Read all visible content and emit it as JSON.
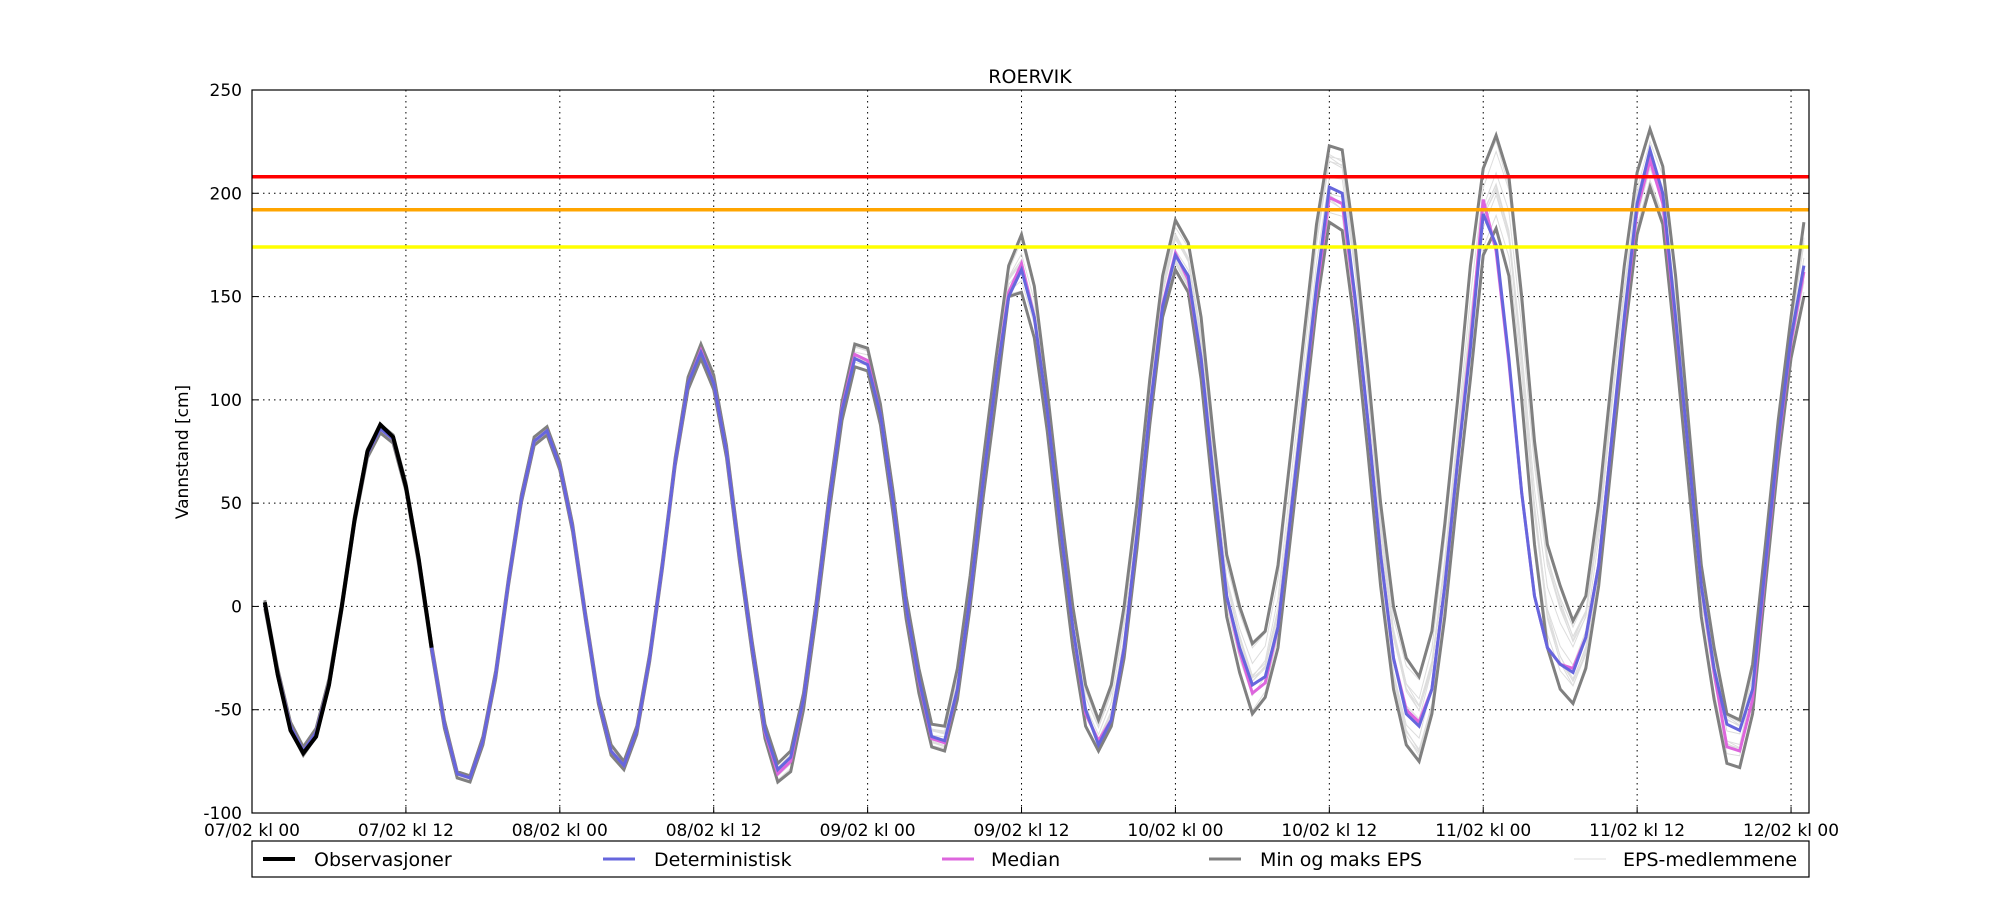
{
  "chart_data": {
    "type": "line",
    "title": "ROERVIK",
    "xlabel": "",
    "ylabel": "Vannstand [cm]",
    "ylim": [
      -100,
      250
    ],
    "yticks": [
      -100,
      -50,
      0,
      50,
      100,
      150,
      200,
      250
    ],
    "xlim_hours_from_start": [
      0,
      121.4
    ],
    "xticks": [
      {
        "hour": 0,
        "label": "07/02 kl 00"
      },
      {
        "hour": 12,
        "label": "07/02 kl 12"
      },
      {
        "hour": 24,
        "label": "08/02 kl 00"
      },
      {
        "hour": 36,
        "label": "08/02 kl 12"
      },
      {
        "hour": 48,
        "label": "09/02 kl 00"
      },
      {
        "hour": 60,
        "label": "09/02 kl 12"
      },
      {
        "hour": 72,
        "label": "10/02 kl 00"
      },
      {
        "hour": 84,
        "label": "10/02 kl 12"
      },
      {
        "hour": 96,
        "label": "11/02 kl 00"
      },
      {
        "hour": 108,
        "label": "11/02 kl 12"
      },
      {
        "hour": 120,
        "label": "12/02 kl 00"
      }
    ],
    "grid": true,
    "legend_position": "below",
    "thresholds": [
      {
        "value": 208,
        "color": "#ff0000"
      },
      {
        "value": 192,
        "color": "#ffa500"
      },
      {
        "value": 174,
        "color": "#ffff00"
      }
    ],
    "series": [
      {
        "name": "Observasjoner",
        "color": "#000000",
        "start_hour": 1,
        "values": [
          2,
          -33,
          -60,
          -71,
          -63,
          -38,
          0,
          42,
          75,
          88,
          82,
          58,
          23,
          -20
        ]
      },
      {
        "name": "Deterministisk",
        "color": "#6666dd",
        "start_hour": 1,
        "values": [
          1,
          -32,
          -58,
          -70,
          -61,
          -37,
          0,
          42,
          74,
          86,
          81,
          58,
          22,
          -20,
          -57,
          -81,
          -83,
          -65,
          -33,
          12,
          52,
          80,
          85,
          68,
          38,
          -5,
          -45,
          -70,
          -77,
          -60,
          -25,
          20,
          70,
          108,
          123,
          108,
          75,
          25,
          -20,
          -60,
          -79,
          -73,
          -45,
          0,
          50,
          95,
          120,
          117,
          93,
          50,
          0,
          -35,
          -63,
          -65,
          -40,
          5,
          60,
          110,
          150,
          163,
          140,
          95,
          40,
          -10,
          -50,
          -67,
          -55,
          -20,
          35,
          95,
          145,
          170,
          160,
          120,
          60,
          5,
          -20,
          -38,
          -34,
          -10,
          45,
          100,
          155,
          203,
          200,
          150,
          90,
          25,
          -25,
          -52,
          -58,
          -40,
          10,
          70,
          125,
          190,
          175,
          120,
          55,
          5,
          -20,
          -28,
          -32,
          -15,
          20,
          80,
          140,
          195,
          221,
          200,
          140,
          75,
          10,
          -30,
          -57,
          -60,
          -40,
          20,
          80,
          130,
          165
        ]
      },
      {
        "name": "Median",
        "color": "#dd66dd",
        "start_hour": 1,
        "values": [
          1,
          -32,
          -58,
          -70,
          -61,
          -37,
          0,
          42,
          74,
          86,
          81,
          58,
          22,
          -20,
          -57,
          -81,
          -83,
          -65,
          -33,
          12,
          52,
          80,
          85,
          68,
          38,
          -5,
          -45,
          -70,
          -77,
          -60,
          -25,
          20,
          70,
          108,
          124,
          108,
          75,
          25,
          -20,
          -61,
          -81,
          -75,
          -45,
          0,
          50,
          96,
          122,
          119,
          93,
          50,
          0,
          -36,
          -64,
          -66,
          -40,
          5,
          60,
          110,
          152,
          166,
          140,
          95,
          40,
          -10,
          -52,
          -65,
          -55,
          -20,
          35,
          95,
          146,
          171,
          158,
          120,
          60,
          5,
          -22,
          -42,
          -37,
          -10,
          45,
          100,
          152,
          198,
          195,
          148,
          90,
          25,
          -25,
          -50,
          -56,
          -40,
          10,
          70,
          128,
          197,
          172,
          118,
          55,
          5,
          -20,
          -28,
          -30,
          -15,
          20,
          80,
          138,
          192,
          216,
          195,
          138,
          75,
          10,
          -32,
          -68,
          -70,
          -45,
          18,
          78,
          128,
          162
        ]
      },
      {
        "name": "Min og maks EPS",
        "color": "#808080",
        "start_hour": 1,
        "min": [
          -1,
          -34,
          -60,
          -72,
          -63,
          -39,
          -2,
          40,
          72,
          84,
          79,
          56,
          20,
          -22,
          -59,
          -83,
          -85,
          -67,
          -35,
          10,
          50,
          78,
          83,
          66,
          36,
          -7,
          -47,
          -72,
          -79,
          -62,
          -27,
          18,
          68,
          105,
          120,
          105,
          72,
          22,
          -23,
          -64,
          -85,
          -80,
          -50,
          -5,
          45,
          90,
          116,
          114,
          88,
          44,
          -6,
          -42,
          -68,
          -70,
          -45,
          0,
          52,
          100,
          150,
          152,
          130,
          85,
          30,
          -20,
          -58,
          -70,
          -58,
          -25,
          28,
          88,
          140,
          163,
          152,
          110,
          50,
          -5,
          -32,
          -52,
          -44,
          -20,
          35,
          90,
          145,
          186,
          182,
          135,
          75,
          10,
          -40,
          -67,
          -75,
          -52,
          -5,
          55,
          110,
          170,
          183,
          160,
          100,
          30,
          -20,
          -40,
          -47,
          -30,
          10,
          70,
          130,
          180,
          203,
          185,
          125,
          60,
          -5,
          -45,
          -76,
          -78,
          -52,
          10,
          70,
          120,
          150
        ],
        "max": [
          3,
          -30,
          -56,
          -68,
          -59,
          -35,
          2,
          44,
          76,
          88,
          83,
          60,
          24,
          -18,
          -55,
          -80,
          -82,
          -63,
          -31,
          14,
          54,
          82,
          87,
          70,
          40,
          -3,
          -43,
          -67,
          -75,
          -58,
          -23,
          22,
          72,
          111,
          127,
          112,
          78,
          28,
          -17,
          -57,
          -76,
          -70,
          -42,
          3,
          54,
          99,
          127,
          125,
          98,
          55,
          5,
          -30,
          -57,
          -58,
          -30,
          15,
          70,
          120,
          165,
          180,
          155,
          105,
          50,
          0,
          -38,
          -55,
          -38,
          0,
          50,
          110,
          160,
          187,
          176,
          140,
          80,
          25,
          0,
          -18,
          -12,
          20,
          75,
          130,
          185,
          223,
          221,
          175,
          115,
          50,
          0,
          -25,
          -34,
          -12,
          40,
          100,
          165,
          212,
          228,
          208,
          150,
          80,
          30,
          10,
          -7,
          5,
          50,
          110,
          165,
          210,
          231,
          213,
          160,
          90,
          20,
          -20,
          -52,
          -55,
          -28,
          30,
          90,
          140,
          186
        ]
      },
      {
        "name": "EPS-medlemmene",
        "color": "#dddddd"
      }
    ]
  }
}
